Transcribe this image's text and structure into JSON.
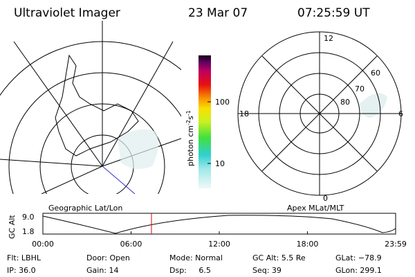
{
  "header": {
    "title": "Ultraviolet Imager",
    "date": "23 Mar 07",
    "time": "07:25:59 UT"
  },
  "left_panel": {
    "label": "Geographic Lat/Lon"
  },
  "right_panel": {
    "label": "Apex MLat/MLT",
    "mlt_labels": [
      "12",
      "18",
      "6",
      "0"
    ],
    "mlat_labels": [
      "60",
      "70",
      "80"
    ]
  },
  "colorbar": {
    "unit": "photon cm",
    "exp1": "-2",
    "unit2": "s",
    "exp2": "-1",
    "ticks": [
      "100",
      "10"
    ]
  },
  "altitude_plot": {
    "ylabel": "GC Alt",
    "yticks": [
      "9.0",
      "1.8"
    ],
    "xticks": [
      "00:00",
      "06:00",
      "12:00",
      "18:00",
      "23:59"
    ]
  },
  "footer": {
    "rows": [
      [
        "Flt: LBHL",
        "Door: Open",
        "Mode: Normal",
        "GC Alt: 5.5 Re",
        "GLat: −78.9"
      ],
      [
        "IP: 36.0",
        "Gain: 14",
        "Dsp:     6.5",
        "Seq: 39",
        "GLon: 299.1"
      ]
    ]
  }
}
